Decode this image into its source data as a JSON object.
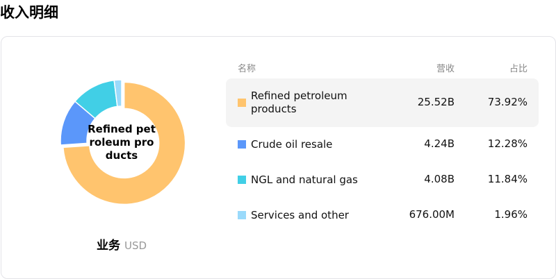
{
  "title": "收入明细",
  "legend_label": "业务",
  "currency": "USD",
  "table": {
    "headers": [
      "名称",
      "营收",
      "占比"
    ]
  },
  "chart_data": {
    "type": "pie",
    "donut": true,
    "center_label": "Refined petroleum products",
    "selected": 0,
    "categories": [
      "Refined petroleum products",
      "Crude oil resale",
      "NGL and natural gas",
      "Services and other"
    ],
    "revenue": [
      "25.52B",
      "4.24B",
      "4.08B",
      "676.00M"
    ],
    "percent_labels": [
      "73.92%",
      "12.28%",
      "11.84%",
      "1.96%"
    ],
    "values": [
      73.92,
      12.28,
      11.84,
      1.96
    ],
    "colors": [
      "#FFC46E",
      "#5B97FA",
      "#41CFE6",
      "#9ADAFB"
    ]
  }
}
